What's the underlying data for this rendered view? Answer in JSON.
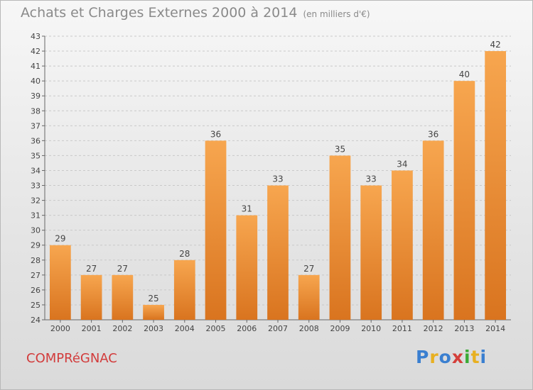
{
  "title": {
    "main": "Achats et Charges Externes 2000 à 2014",
    "unit": "(en milliers d'€)"
  },
  "commune": "COMPRéGNAC",
  "logo": {
    "text": "Proxiti",
    "letters": [
      {
        "ch": "P",
        "color": "#3a7fd0"
      },
      {
        "ch": "r",
        "color": "#e8b021"
      },
      {
        "ch": "o",
        "color": "#3a7fd0"
      },
      {
        "ch": "x",
        "color": "#d43f3a"
      },
      {
        "ch": "i",
        "color": "#3aaa35"
      },
      {
        "ch": "t",
        "color": "#e8b021"
      },
      {
        "ch": "i",
        "color": "#3a7fd0"
      }
    ]
  },
  "colors": {
    "bar_top": "#f7a64f",
    "bar_bottom": "#d9741f",
    "axis_text": "#444444",
    "grid": "#c9c9c9"
  },
  "chart_data": {
    "type": "bar",
    "categories": [
      "2000",
      "2001",
      "2002",
      "2003",
      "2004",
      "2005",
      "2006",
      "2007",
      "2008",
      "2009",
      "2010",
      "2011",
      "2012",
      "2013",
      "2014"
    ],
    "values": [
      29,
      27,
      27,
      25,
      28,
      36,
      31,
      33,
      27,
      35,
      33,
      34,
      36,
      40,
      42
    ],
    "ylim": [
      24,
      43
    ],
    "yticks": [
      24,
      25,
      26,
      27,
      28,
      29,
      30,
      31,
      32,
      33,
      34,
      35,
      36,
      37,
      38,
      39,
      40,
      41,
      42,
      43
    ],
    "grid": true,
    "data_labels": true
  }
}
